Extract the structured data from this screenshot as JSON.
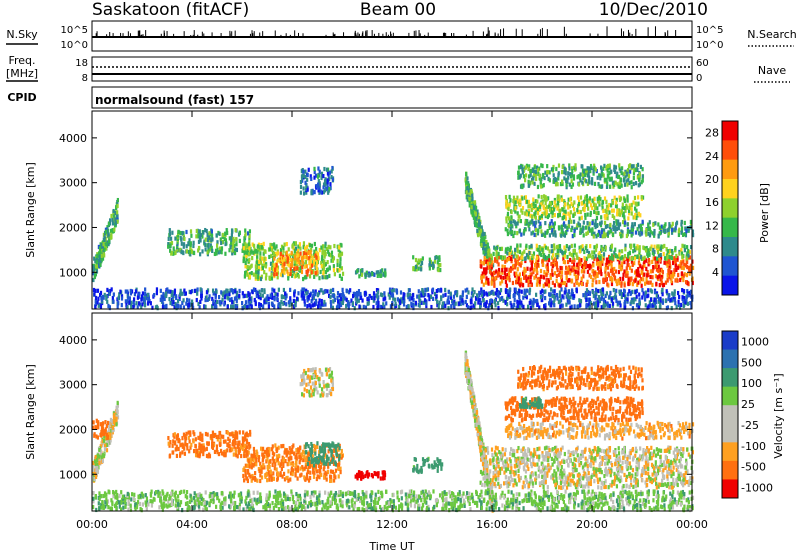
{
  "header": {
    "station": "Saskatoon (fitACF)",
    "beam": "Beam 00",
    "date": "10/Dec/2010"
  },
  "nsky_panel": {
    "left_label": "N.Sky",
    "left_ticks": [
      "10^5",
      "10^0"
    ],
    "right_ticks": [
      "10^5",
      "10^0"
    ],
    "right_label": "N.Search"
  },
  "freq_panel": {
    "left_label_1": "Freq.",
    "left_label_2": "[MHz]",
    "left_ticks": [
      "18",
      "8"
    ],
    "right_ticks": [
      "60",
      "0"
    ],
    "right_label": "Nave",
    "cpid_label": "CPID",
    "cpid_text": "normalsound (fast) 157"
  },
  "chart_data": [
    {
      "type": "heatmap",
      "name": "power",
      "ylabel": "Slant Range [km]",
      "xlim_hours": [
        0,
        24
      ],
      "ylim_km": [
        180,
        4600
      ],
      "y_ticks": [
        "1000",
        "2000",
        "3000",
        "4000"
      ],
      "y_tick_values": [
        1000,
        2000,
        3000,
        4000
      ],
      "colorbar": {
        "label": "Power [dB]",
        "ticks": [
          "4",
          "8",
          "12",
          "16",
          "20",
          "24",
          "28"
        ],
        "tick_values": [
          4,
          8,
          12,
          16,
          20,
          24,
          28
        ],
        "range": [
          0,
          30
        ],
        "colors": [
          "#0a15e8",
          "#1f55d2",
          "#2e8a8c",
          "#36b84a",
          "#8ed12e",
          "#ffd21e",
          "#ff9b0f",
          "#ff4e0a",
          "#f00000"
        ]
      },
      "regions": [
        {
          "t0": 0.0,
          "t1": 1.0,
          "r0": 1000,
          "r1": 2400,
          "v": 11,
          "slope": 1
        },
        {
          "t0": 3.0,
          "t1": 6.3,
          "r0": 1400,
          "r1": 1950,
          "v": 11
        },
        {
          "t0": 6.0,
          "t1": 10.0,
          "r0": 850,
          "r1": 1650,
          "v": 14
        },
        {
          "t0": 7.2,
          "t1": 9.0,
          "r0": 950,
          "r1": 1450,
          "v": 22
        },
        {
          "t0": 8.3,
          "t1": 9.6,
          "r0": 2750,
          "r1": 3350,
          "v": 6
        },
        {
          "t0": 10.5,
          "t1": 11.7,
          "r0": 900,
          "r1": 1050,
          "v": 9
        },
        {
          "t0": 12.8,
          "t1": 14.0,
          "r0": 1050,
          "r1": 1350,
          "v": 12
        },
        {
          "t0": 14.9,
          "t1": 16.0,
          "r0": 1000,
          "r1": 3000,
          "v": 12,
          "slope": -1
        },
        {
          "t0": 15.5,
          "t1": 24.0,
          "r0": 700,
          "r1": 1350,
          "v": 25
        },
        {
          "t0": 16.0,
          "t1": 24.0,
          "r0": 1300,
          "r1": 1600,
          "v": 13
        },
        {
          "t0": 16.5,
          "t1": 24.0,
          "r0": 1800,
          "r1": 2150,
          "v": 10
        },
        {
          "t0": 16.5,
          "t1": 22.0,
          "r0": 2200,
          "r1": 2700,
          "v": 15
        },
        {
          "t0": 17.0,
          "t1": 22.0,
          "r0": 2900,
          "r1": 3400,
          "v": 11
        },
        {
          "t0": 0.0,
          "t1": 24.0,
          "r0": 200,
          "r1": 620,
          "v": 5
        }
      ]
    },
    {
      "type": "heatmap",
      "name": "velocity",
      "ylabel": "Slant Range [km]",
      "xlabel": "Time UT",
      "xlim_hours": [
        0,
        24
      ],
      "x_ticks": [
        "00:00",
        "04:00",
        "08:00",
        "12:00",
        "16:00",
        "20:00",
        "00:00"
      ],
      "x_tick_values": [
        0,
        4,
        8,
        12,
        16,
        20,
        24
      ],
      "ylim_km": [
        180,
        4600
      ],
      "y_ticks": [
        "1000",
        "2000",
        "3000",
        "4000"
      ],
      "y_tick_values": [
        1000,
        2000,
        3000,
        4000
      ],
      "colorbar": {
        "label": "Velocity [m s⁻¹]",
        "ticks": [
          "1000",
          "500",
          "100",
          "25",
          "-25",
          "-100",
          "-500",
          "-1000"
        ],
        "tick_values": [
          1000,
          500,
          100,
          25,
          -25,
          -100,
          -500,
          -1000
        ],
        "colors": [
          "#1a3cc8",
          "#2c72b0",
          "#3c9a70",
          "#6cc840",
          "#c0c0b8",
          "#c0c0b8",
          "#ffa020",
          "#ff7010",
          "#f00000"
        ]
      },
      "regions": [
        {
          "t0": 0.0,
          "t1": 1.0,
          "r0": 1000,
          "r1": 2400,
          "v": 0,
          "slope": 1
        },
        {
          "t0": 0.0,
          "t1": 0.6,
          "r0": 1800,
          "r1": 2200,
          "v": -300
        },
        {
          "t0": 3.0,
          "t1": 6.3,
          "r0": 1400,
          "r1": 1950,
          "v": -150
        },
        {
          "t0": 6.0,
          "t1": 10.0,
          "r0": 850,
          "r1": 1650,
          "v": -120
        },
        {
          "t0": 8.5,
          "t1": 9.9,
          "r0": 1200,
          "r1": 1700,
          "v": 200
        },
        {
          "t0": 8.3,
          "t1": 9.6,
          "r0": 2750,
          "r1": 3350,
          "v": 0
        },
        {
          "t0": 10.5,
          "t1": 11.7,
          "r0": 900,
          "r1": 1050,
          "v": -800
        },
        {
          "t0": 12.8,
          "t1": 14.0,
          "r0": 1050,
          "r1": 1350,
          "v": 150
        },
        {
          "t0": 14.9,
          "t1": 16.0,
          "r0": 300,
          "r1": 3500,
          "v": 0,
          "slope": -1
        },
        {
          "t0": 15.5,
          "t1": 24.0,
          "r0": 700,
          "r1": 1600,
          "v": 0
        },
        {
          "t0": 16.5,
          "t1": 24.0,
          "r0": 1800,
          "r1": 2150,
          "v": -50
        },
        {
          "t0": 16.5,
          "t1": 22.0,
          "r0": 2200,
          "r1": 2700,
          "v": -200
        },
        {
          "t0": 17.0,
          "t1": 18.0,
          "r0": 2500,
          "r1": 2700,
          "v": 150
        },
        {
          "t0": 17.0,
          "t1": 22.0,
          "r0": 2900,
          "r1": 3400,
          "v": -150
        },
        {
          "t0": 0.0,
          "t1": 24.0,
          "r0": 200,
          "r1": 620,
          "v": 60
        }
      ]
    }
  ]
}
